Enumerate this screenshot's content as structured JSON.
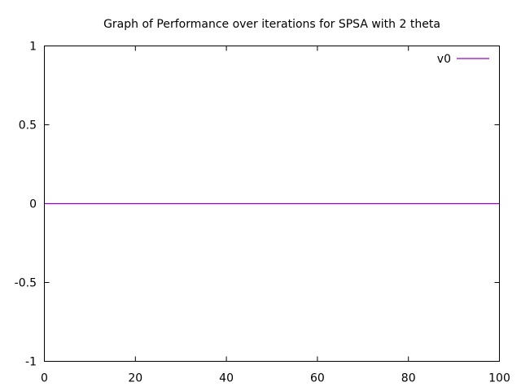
{
  "chart_data": {
    "type": "line",
    "title": "Graph of Performance over iterations for SPSA with 2 theta",
    "xlabel": "",
    "ylabel": "",
    "xlim": [
      0,
      100
    ],
    "ylim": [
      -1,
      1
    ],
    "x_ticks": [
      0,
      20,
      40,
      60,
      80,
      100
    ],
    "y_ticks": [
      -1,
      -0.5,
      0,
      0.5,
      1
    ],
    "x_tick_labels": [
      "0",
      "20",
      "40",
      "60",
      "80",
      "100"
    ],
    "y_tick_labels": [
      "-1",
      "-0.5",
      "0",
      "0.5",
      "1"
    ],
    "grid": false,
    "legend_position": "top-right",
    "series": [
      {
        "name": "v0",
        "color": "#9400d3",
        "x": [
          0,
          100
        ],
        "y": [
          0,
          0
        ]
      }
    ]
  }
}
